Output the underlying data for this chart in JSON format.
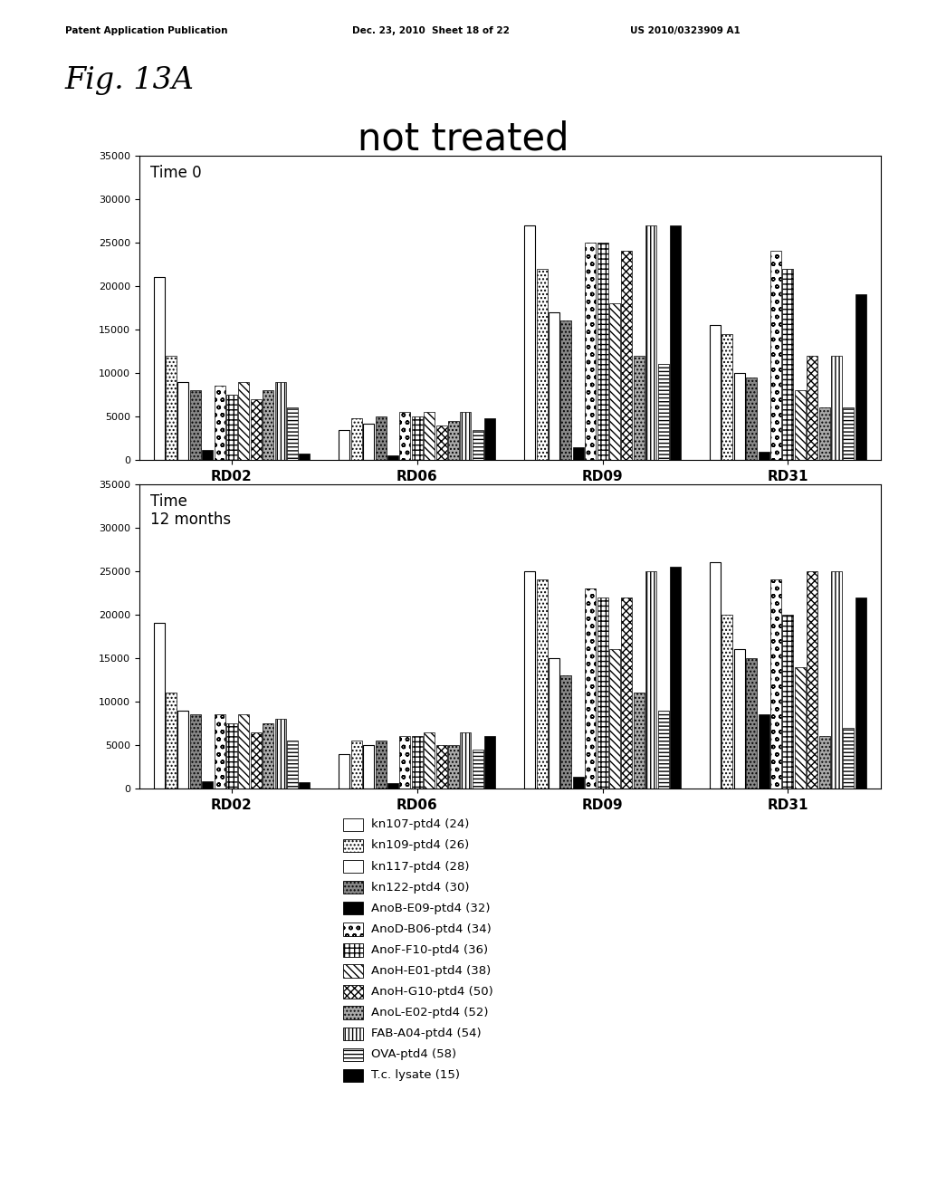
{
  "title": "not treated",
  "fig_label": "Fig. 13A",
  "patent_line1": "Patent Application Publication",
  "patent_line2": "Dec. 23, 2010  Sheet 18 of 22",
  "patent_line3": "US 2010/0323909 A1",
  "groups": [
    "RD02",
    "RD06",
    "RD09",
    "RD31"
  ],
  "series_labels": [
    "kn107-ptd4 (24)",
    "kn109-ptd4 (26)",
    "kn117-ptd4 (28)",
    "kn122-ptd4 (30)",
    "AnoB-E09-ptd4 (32)",
    "AnoD-B06-ptd4 (34)",
    "AnoF-F10-ptd4 (36)",
    "AnoH-E01-ptd4 (38)",
    "AnoH-G10-ptd4 (50)",
    "AnoL-E02-ptd4 (52)",
    "FAB-A04-ptd4 (54)",
    "OVA-ptd4 (58)",
    "T.c. lysate (15)"
  ],
  "subplot1_title": "Time 0",
  "subplot2_title": "Time\n12 months",
  "time0_data": {
    "RD02": [
      21000,
      12000,
      9000,
      8000,
      1200,
      8500,
      7500,
      9000,
      7000,
      8000,
      9000,
      6000,
      800
    ],
    "RD06": [
      3500,
      4800,
      4200,
      5000,
      500,
      5500,
      5000,
      5500,
      4000,
      4500,
      5500,
      3500,
      4800
    ],
    "RD09": [
      27000,
      22000,
      17000,
      16000,
      1500,
      25000,
      25000,
      18000,
      24000,
      12000,
      27000,
      11000,
      27000
    ],
    "RD31": [
      15500,
      14500,
      10000,
      9500,
      1000,
      24000,
      22000,
      8000,
      12000,
      6000,
      12000,
      6000,
      19000
    ]
  },
  "time12_data": {
    "RD02": [
      19000,
      11000,
      9000,
      8500,
      900,
      8500,
      7500,
      8500,
      6500,
      7500,
      8000,
      5500,
      700
    ],
    "RD06": [
      4000,
      5500,
      5000,
      5500,
      600,
      6000,
      6000,
      6500,
      5000,
      5000,
      6500,
      4500,
      6000
    ],
    "RD09": [
      25000,
      24000,
      15000,
      13000,
      1400,
      23000,
      22000,
      16000,
      22000,
      11000,
      25000,
      9000,
      25500
    ],
    "RD31": [
      26000,
      20000,
      16000,
      15000,
      8500,
      24000,
      20000,
      14000,
      25000,
      6000,
      25000,
      7000,
      22000
    ]
  },
  "ylim": [
    0,
    35000
  ],
  "yticks": [
    0,
    5000,
    10000,
    15000,
    20000,
    25000,
    30000,
    35000
  ]
}
